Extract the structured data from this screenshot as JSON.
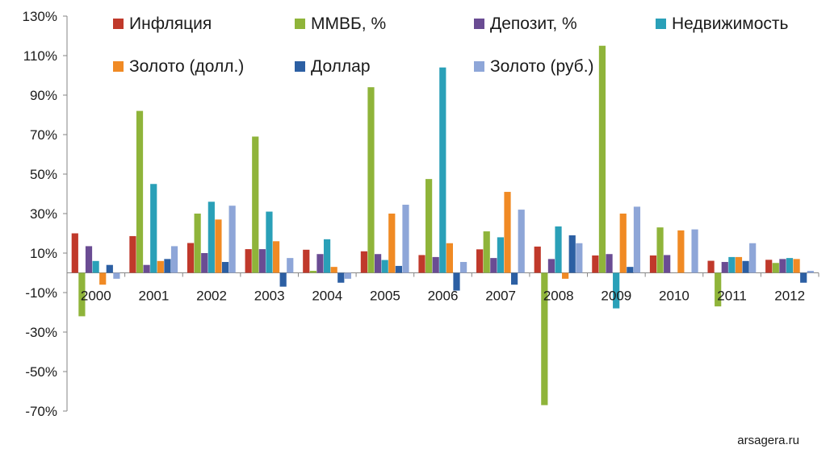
{
  "chart_data": {
    "type": "bar",
    "title": "",
    "xlabel": "",
    "ylabel": "",
    "ylim": [
      -70,
      130
    ],
    "y_ticks": [
      "130%",
      "110%",
      "90%",
      "70%",
      "50%",
      "30%",
      "10%",
      "-10%",
      "-30%",
      "-50%",
      "-70%"
    ],
    "y_tick_values": [
      130,
      110,
      90,
      70,
      50,
      30,
      10,
      -10,
      -30,
      -50,
      -70
    ],
    "grid": false,
    "legend_position": "top",
    "categories": [
      "2000",
      "2001",
      "2002",
      "2003",
      "2004",
      "2005",
      "2006",
      "2007",
      "2008",
      "2009",
      "2010",
      "2011",
      "2012"
    ],
    "series": [
      {
        "name": "Инфляция",
        "color": "#c0392b",
        "values": [
          20,
          18.6,
          15.1,
          12,
          11.7,
          10.9,
          9,
          11.9,
          13.3,
          8.8,
          8.8,
          6.1,
          6.6
        ]
      },
      {
        "name": "ММВБ, %",
        "color": "#8fb43a",
        "values": [
          -22,
          82,
          30,
          69,
          1,
          94,
          47.5,
          21,
          -67,
          115,
          23,
          -17,
          5
        ]
      },
      {
        "name": "Депозит, %",
        "color": "#6a4c93",
        "values": [
          13.5,
          4,
          10,
          12,
          9.5,
          9.5,
          8,
          7.5,
          7,
          9.5,
          9,
          5.5,
          7
        ]
      },
      {
        "name": "Недвижимость",
        "color": "#2aa0b8",
        "values": [
          6,
          45,
          36,
          31,
          17,
          6.5,
          104,
          18,
          23.5,
          -18,
          0,
          8,
          7.5
        ]
      },
      {
        "name": "Золото (долл.)",
        "color": "#f08a24",
        "values": [
          -6,
          6,
          27,
          16,
          3,
          30,
          15,
          41,
          -3,
          30,
          21.5,
          8,
          7
        ]
      },
      {
        "name": "Доллар",
        "color": "#2c5fa3",
        "values": [
          4,
          7,
          5.5,
          -7,
          -5,
          3.5,
          -9,
          -6,
          19,
          3,
          0,
          6,
          -5
        ]
      },
      {
        "name": "Золото (руб.)",
        "color": "#8ea6d8",
        "values": [
          -3,
          13.5,
          34,
          7.5,
          -3,
          34.5,
          5.5,
          32,
          15,
          33.5,
          22,
          15,
          1
        ]
      }
    ]
  },
  "watermark": "arsagera.ru"
}
